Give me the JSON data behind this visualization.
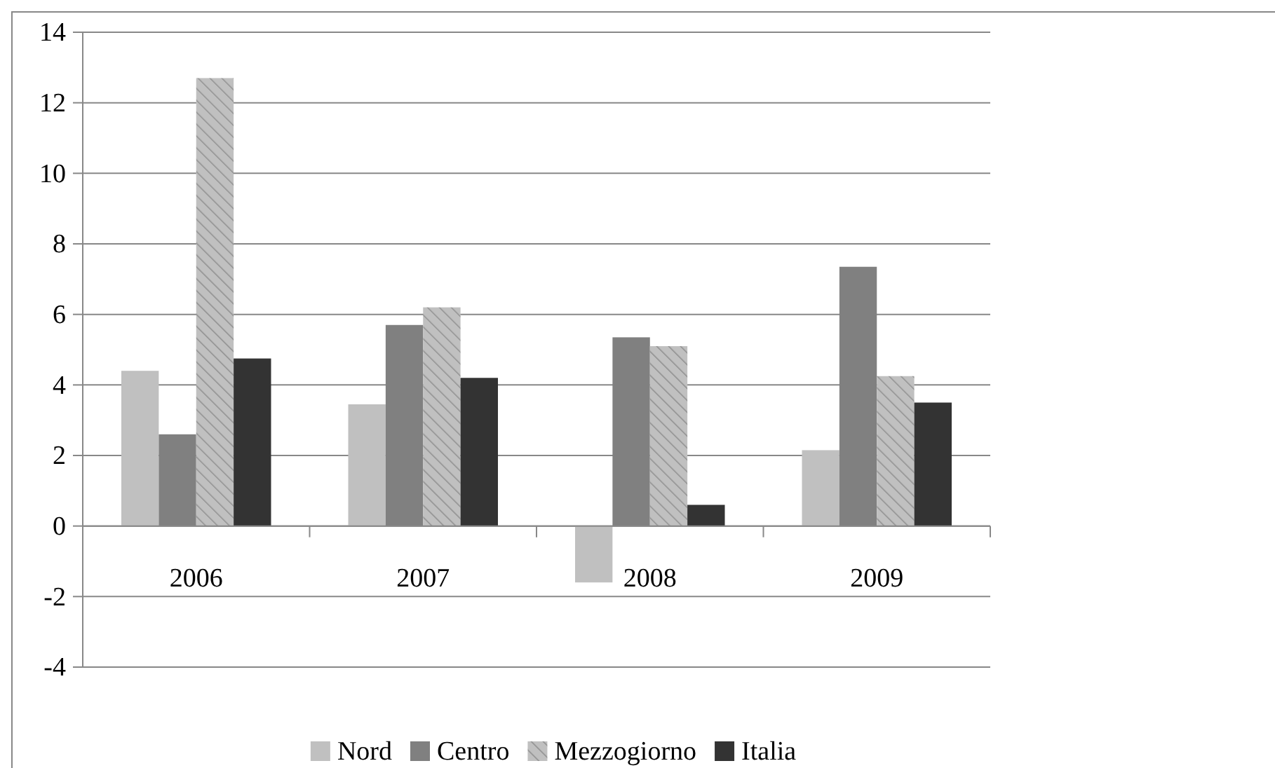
{
  "chart_data": {
    "type": "bar",
    "categories": [
      "2006",
      "2007",
      "2008",
      "2009"
    ],
    "series": [
      {
        "name": "Nord",
        "color": "#c0c0c0",
        "values": [
          4.4,
          3.45,
          -1.6,
          2.15
        ]
      },
      {
        "name": "Centro",
        "color": "#808080",
        "values": [
          2.6,
          5.7,
          5.35,
          7.35
        ]
      },
      {
        "name": "Mezzogiorno",
        "color": "#c0c0c0",
        "values": [
          12.7,
          6.2,
          5.1,
          4.25
        ]
      },
      {
        "name": "Italia",
        "color": "#333333",
        "values": [
          4.75,
          4.2,
          0.6,
          3.5
        ]
      }
    ],
    "ylim": [
      -4,
      14
    ],
    "yticks": [
      -4,
      -2,
      0,
      2,
      4,
      6,
      8,
      10,
      12,
      14
    ],
    "grid": "y",
    "legend": "bottom"
  }
}
